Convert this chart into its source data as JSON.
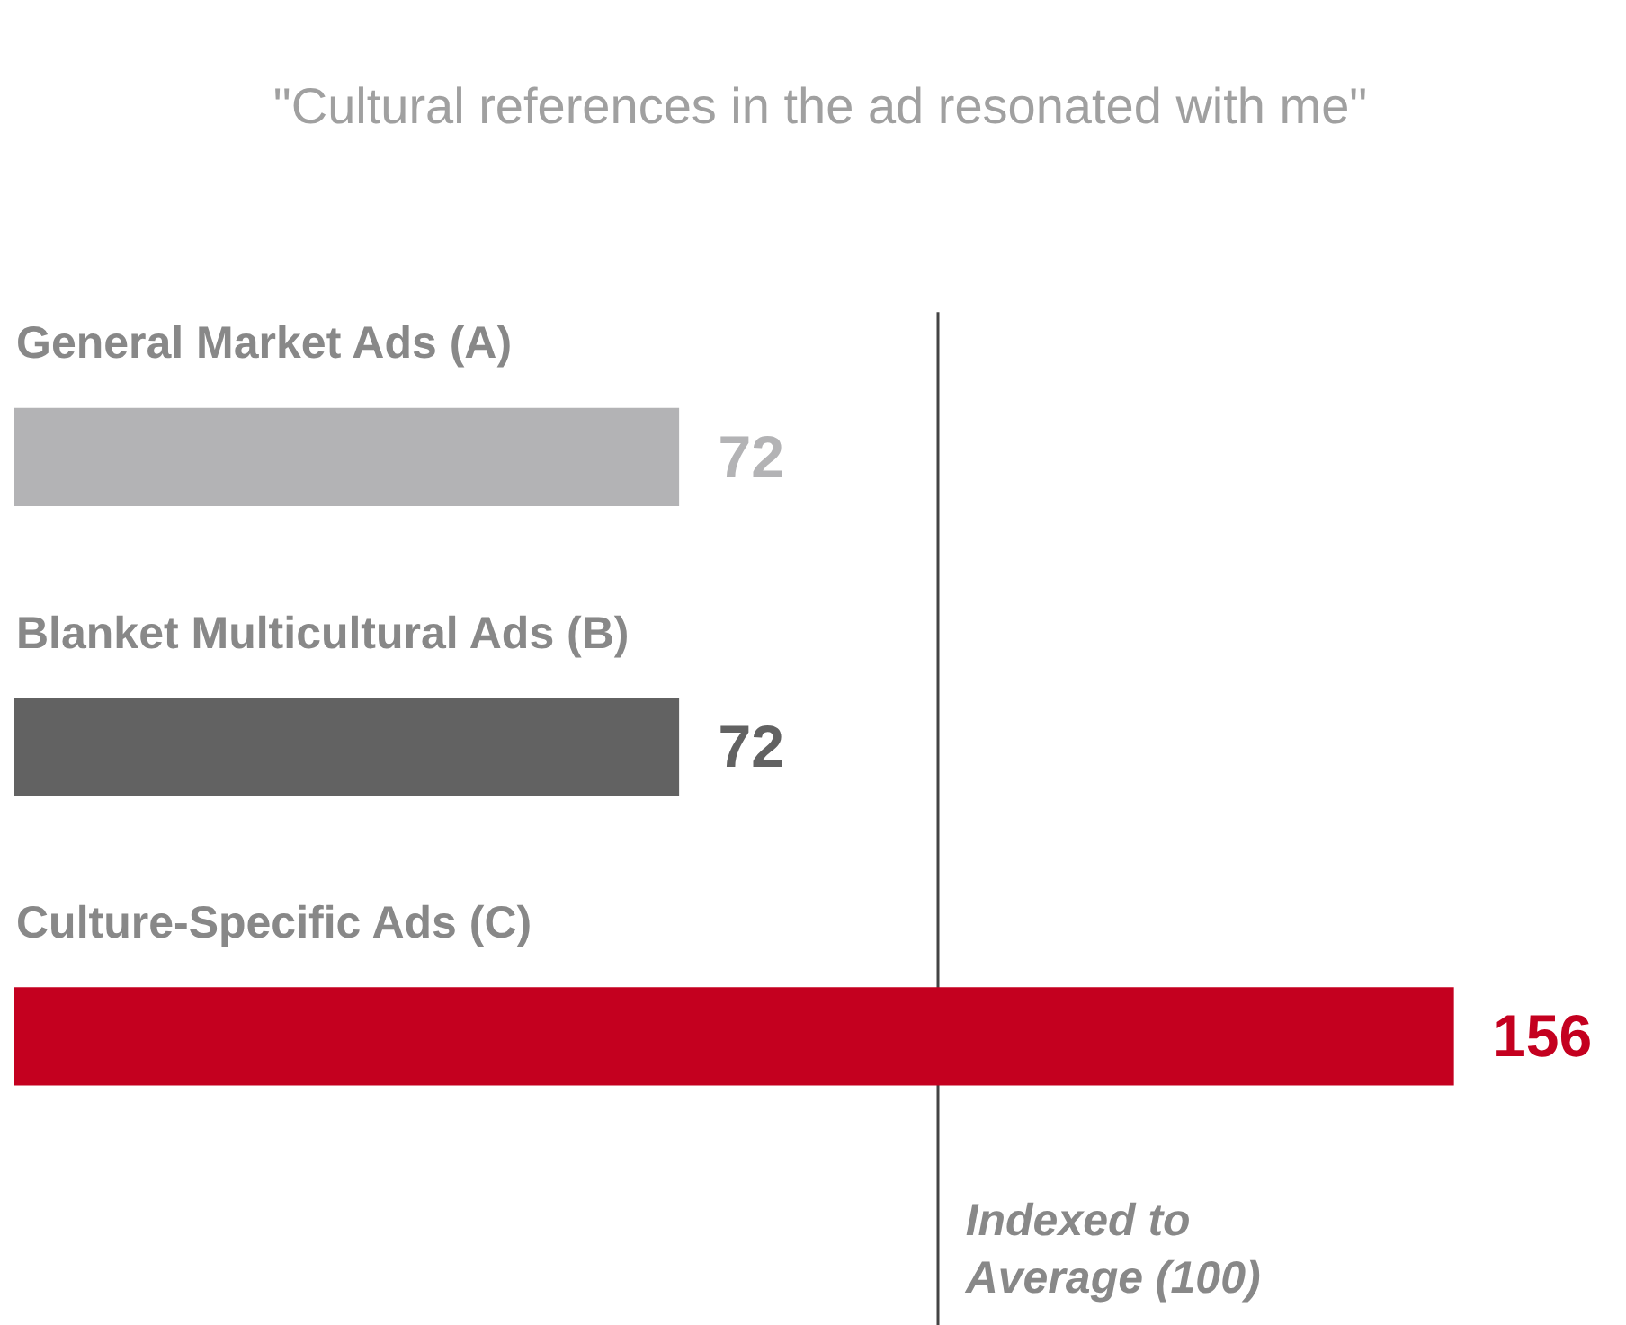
{
  "chart_data": {
    "type": "bar",
    "orientation": "horizontal",
    "title": "\"Cultural references in the ad resonated with me\"",
    "categories": [
      "General Market Ads (A)",
      "Blanket Multicultural Ads (B)",
      "Culture-Specific Ads (C)"
    ],
    "values": [
      72,
      72,
      156
    ],
    "colors": [
      "#b3b3b5",
      "#626262",
      "#c4001f"
    ],
    "data_labels": true,
    "ref_lines": [
      {
        "axis": "x",
        "value": 100,
        "label": "Indexed to Average (100)",
        "color": "#444444"
      }
    ],
    "legend": false
  }
}
